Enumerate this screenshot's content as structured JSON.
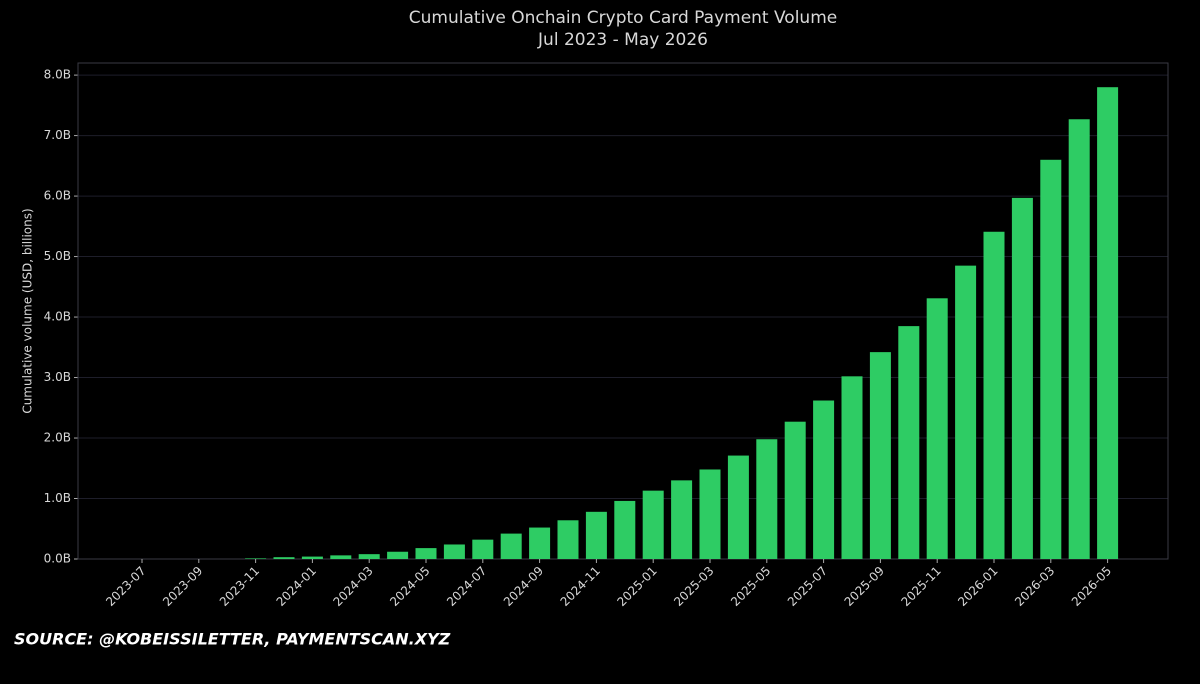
{
  "chart_data": {
    "type": "bar",
    "title": "Cumulative Onchain Crypto Card Payment Volume",
    "subtitle": "Jul 2023 - May 2026",
    "y_label": "Cumulative volume (USD, billions)",
    "source": "SOURCE: @KOBEISSILETTER,  PAYMENTSCAN.XYZ",
    "categories": [
      "2023-07",
      null,
      "2023-09",
      null,
      "2023-11",
      null,
      "2024-01",
      null,
      "2024-03",
      null,
      "2024-05",
      null,
      "2024-07",
      null,
      "2024-09",
      null,
      "2024-11",
      null,
      "2025-01",
      null,
      "2025-03",
      null,
      "2025-05",
      null,
      "2025-07",
      null,
      "2025-09",
      null,
      "2025-11",
      null,
      "2026-01",
      null,
      "2026-03",
      null,
      "2026-05"
    ],
    "values": [
      0,
      0,
      0,
      0,
      0.01,
      0.03,
      0.04,
      0.06,
      0.08,
      0.12,
      0.18,
      0.24,
      0.32,
      0.42,
      0.52,
      0.64,
      0.78,
      0.96,
      1.13,
      1.3,
      1.48,
      1.71,
      1.98,
      2.27,
      2.62,
      3.02,
      3.42,
      3.85,
      4.31,
      4.85,
      5.41,
      5.97,
      6.6,
      7.27,
      7.8
    ],
    "color": "#2ecc64",
    "ylim": [
      0,
      8.2
    ],
    "yticks": [
      {
        "value": 0,
        "label": "0.0B"
      },
      {
        "value": 1,
        "label": "1.0B"
      },
      {
        "value": 2,
        "label": "2.0B"
      },
      {
        "value": 3,
        "label": "3.0B"
      },
      {
        "value": 4,
        "label": "4.0B"
      },
      {
        "value": 5,
        "label": "5.0B"
      },
      {
        "value": 6,
        "label": "6.0B"
      },
      {
        "value": 7,
        "label": "7.0B"
      },
      {
        "value": 8,
        "label": "8.0B"
      }
    ],
    "grid": true
  }
}
